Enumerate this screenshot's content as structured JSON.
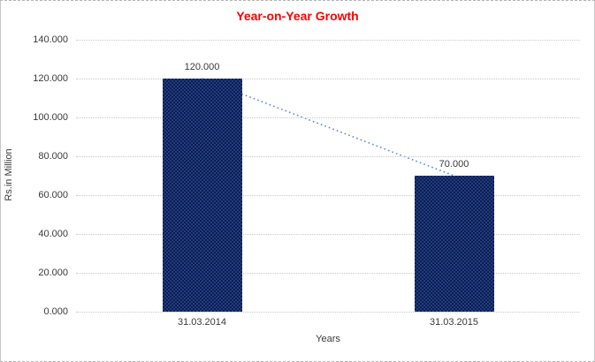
{
  "chart_data": {
    "type": "bar",
    "title": "Year-on-Year Growth",
    "categories": [
      "31.03.2014",
      "31.03.2015"
    ],
    "values": [
      120,
      70
    ],
    "value_labels": [
      "120.000",
      "70.000"
    ],
    "xlabel": "Years",
    "ylabel": "Rs.in Million",
    "ylim": [
      0,
      140
    ],
    "ytick_interval": 20,
    "ytick_labels": [
      "0.000",
      "20.000",
      "40.000",
      "60.000",
      "80.000",
      "100.000",
      "120.000",
      "140.000"
    ],
    "grid": "horizontal dotted",
    "legend_position": "none",
    "trendline": {
      "style": "dotted",
      "from_label": "120.000",
      "to_label": "70.000"
    },
    "colors": {
      "title": "#FF0000",
      "bar_pattern_dark": "#0e1d4a",
      "bar_pattern_light": "#1f3d85",
      "trendline": "#5b8bd5",
      "gridline": "#c9c9c9",
      "text": "#3a3a3a",
      "frame_border": "#c6c6c6"
    }
  }
}
